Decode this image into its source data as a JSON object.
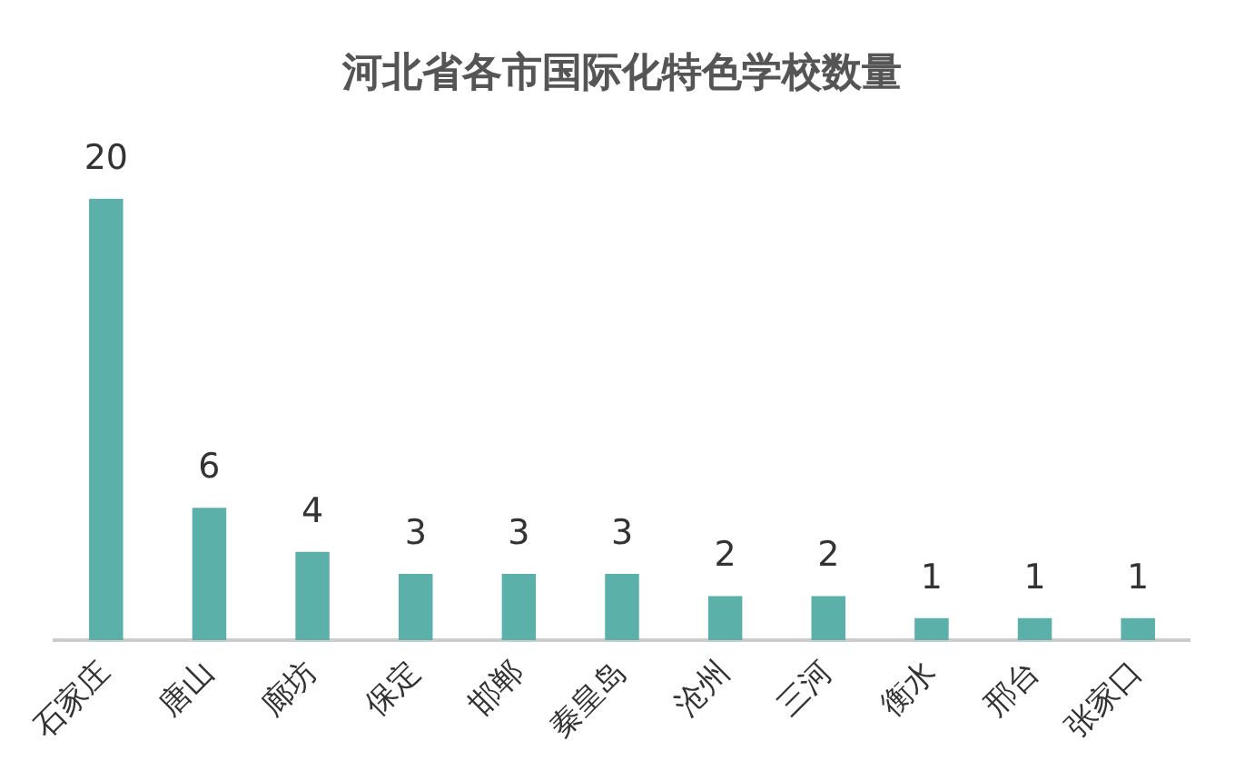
{
  "chart_data": {
    "type": "bar",
    "title": "河北省各市国际化特色学校数量",
    "categories": [
      "石家庄",
      "唐山",
      "廊坊",
      "保定",
      "邯郸",
      "秦皇岛",
      "沧州",
      "三河",
      "衡水",
      "邢台",
      "张家口"
    ],
    "values": [
      20,
      6,
      4,
      3,
      3,
      3,
      2,
      2,
      1,
      1,
      1
    ],
    "color": "#5bb1a9",
    "data_labels": true,
    "grid": false,
    "legend": false
  }
}
